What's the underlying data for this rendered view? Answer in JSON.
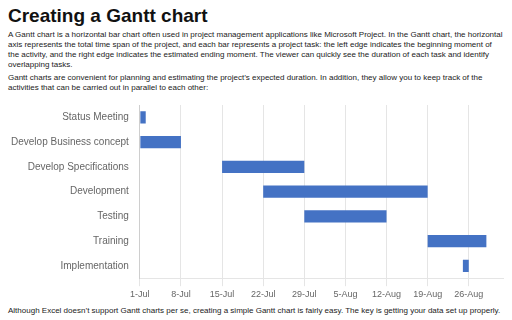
{
  "chart_data": {
    "type": "bar",
    "orientation": "horizontal",
    "title": "Creating a Gantt chart",
    "annotations": [
      "A Gantt chart is a horizontal bar chart often used in project management applications like Microsoft Project. In the Gantt chart, the horizontal axis represents the total time span of the project, and each bar represents a project task: the left edge indicates the beginning moment of the activity, and the right edge indicates the estimated ending moment. The viewer can quickly see the duration of each task and identify overlapping tasks.",
      "Gantt charts are convenient for planning and estimating the project’s expected duration. In addition, they allow you to keep track of the activities that can be carried out in parallel to each other:",
      "Although Excel doesn’t support Gantt charts per se, creating a simple Gantt chart is fairly easy. The key is getting your data set up properly."
    ],
    "categories": [
      "Status Meeting",
      "Develop Business concept",
      "Develop Specifications",
      "Development",
      "Testing",
      "Training",
      "Implementation"
    ],
    "starts": [
      0,
      0,
      14,
      21,
      28,
      49,
      55
    ],
    "values": [
      1,
      7,
      14,
      28,
      14,
      10,
      1
    ],
    "color": "#4472C4",
    "xlim": [
      0,
      62
    ],
    "xticks": [
      {
        "value": 0,
        "label": "1-Jul"
      },
      {
        "value": 7,
        "label": "8-Jul"
      },
      {
        "value": 14,
        "label": "15-Jul"
      },
      {
        "value": 21,
        "label": "22-Jul"
      },
      {
        "value": 28,
        "label": "29-Jul"
      },
      {
        "value": 35,
        "label": "5-Aug"
      },
      {
        "value": 42,
        "label": "12-Aug"
      },
      {
        "value": 49,
        "label": "19-Aug"
      },
      {
        "value": 56,
        "label": "26-Aug"
      }
    ],
    "grid": "x"
  }
}
